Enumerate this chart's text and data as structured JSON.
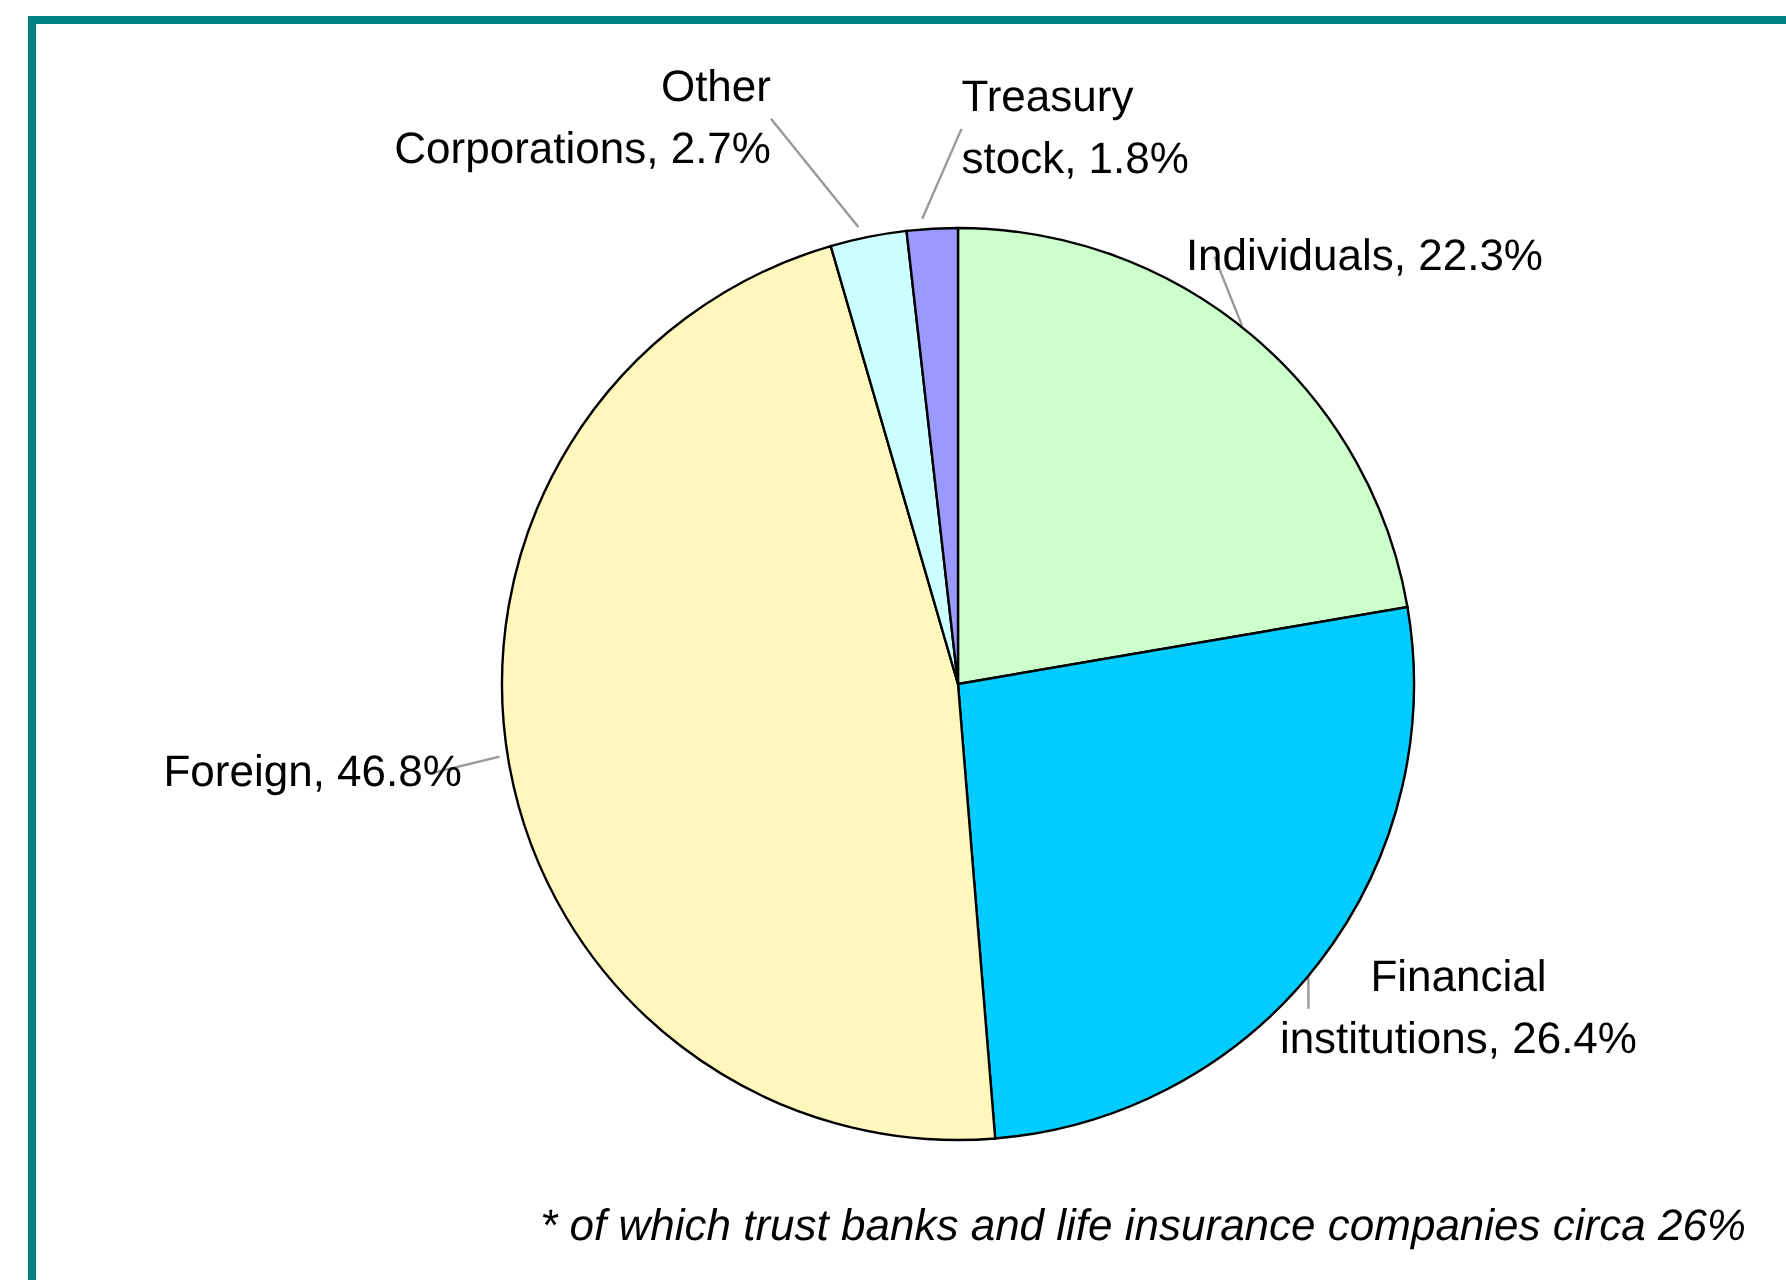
{
  "chart_data": {
    "type": "pie",
    "categories": [
      "Individuals",
      "Financial institutions",
      "Foreign",
      "Other Corporations",
      "Treasury stock"
    ],
    "values": [
      22.3,
      26.4,
      46.8,
      2.7,
      1.8
    ],
    "value_labels": [
      "22.3%",
      "26.4%",
      "46.8%",
      "2.7%",
      "1.8%"
    ],
    "colors": [
      "#ccffcc",
      "#00ccff",
      "#fff7bb",
      "#ccffff",
      "#9999ff"
    ],
    "annotations": [
      "* of which trust banks and life insurance companies circa 26%"
    ]
  }
}
